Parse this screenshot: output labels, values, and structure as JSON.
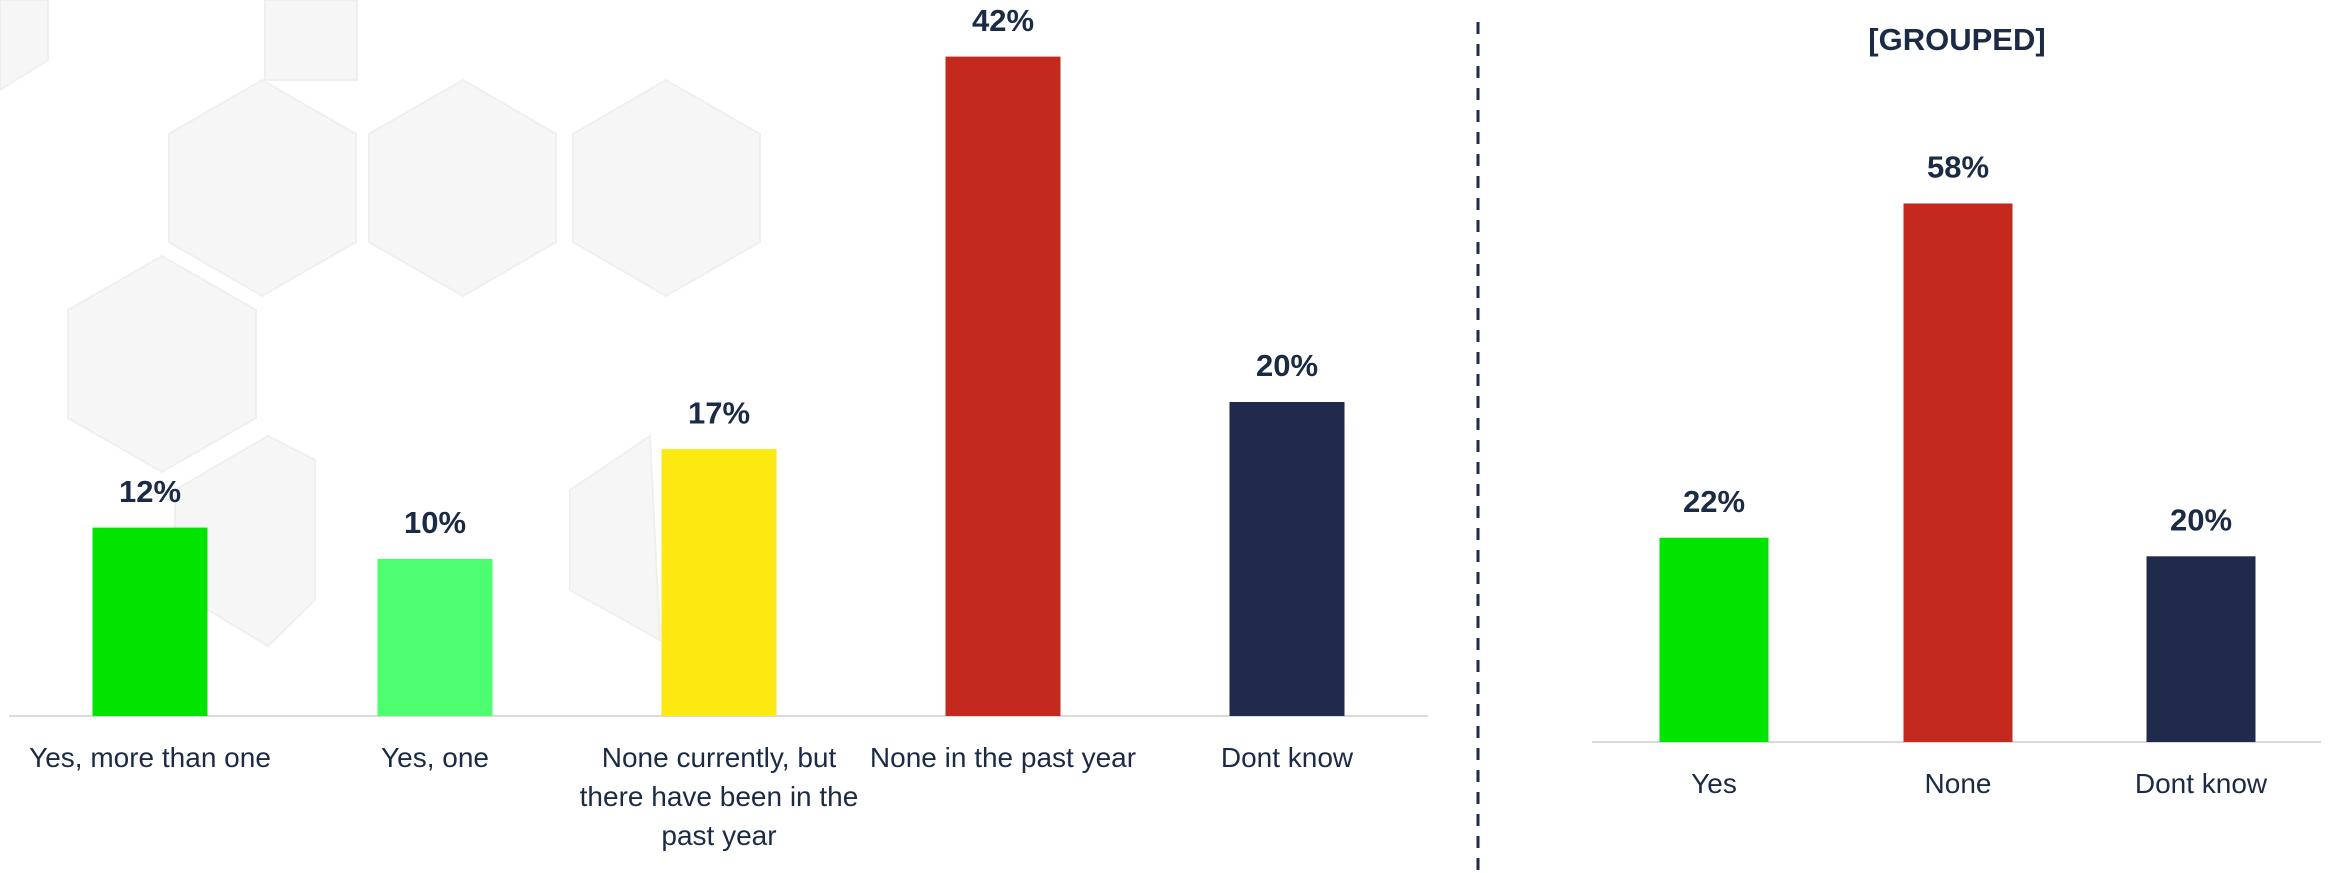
{
  "chart_data": [
    {
      "type": "bar",
      "categories": [
        "Yes, more than one",
        "Yes, one",
        "None currently, but there have been in the past year",
        "None in the past year",
        "Dont know"
      ],
      "values": [
        12,
        10,
        17,
        42,
        20
      ],
      "value_labels": [
        "12%",
        "10%",
        "17%",
        "42%",
        "20%"
      ],
      "colors": [
        "#00e400",
        "#4dff70",
        "#fbe911",
        "#c4291d",
        "#1f2a4c"
      ]
    },
    {
      "type": "bar",
      "title": "[GROUPED]",
      "categories": [
        "Yes",
        "None",
        "Dont know"
      ],
      "values": [
        22,
        58,
        20
      ],
      "value_labels": [
        "22%",
        "58%",
        "20%"
      ],
      "colors": [
        "#00e400",
        "#c4291d",
        "#1f2a4c"
      ]
    }
  ]
}
